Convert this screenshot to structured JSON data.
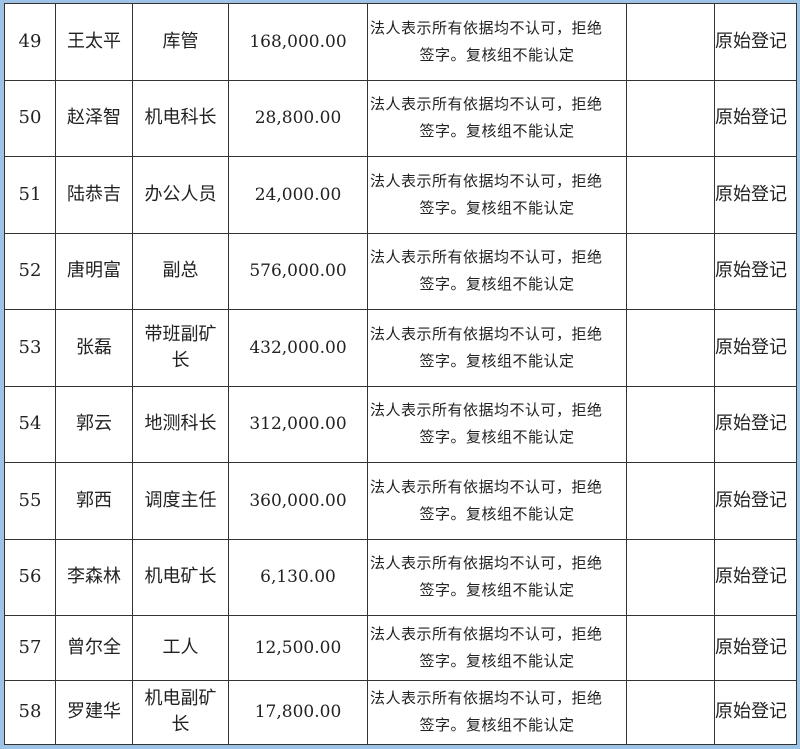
{
  "rows": [
    {
      "no": "49",
      "name": "王太平",
      "title": "库管",
      "amount": "168,000.00",
      "remark_line1": "法人表示所有依据均不认可，拒绝",
      "remark_line2": "签字。复核组不能认定",
      "extra": "",
      "status": "原始登记"
    },
    {
      "no": "50",
      "name": "赵泽智",
      "title": "机电科长",
      "amount": "28,800.00",
      "remark_line1": "法人表示所有依据均不认可，拒绝",
      "remark_line2": "签字。复核组不能认定",
      "extra": "",
      "status": "原始登记"
    },
    {
      "no": "51",
      "name": "陆恭吉",
      "title": "办公人员",
      "amount": "24,000.00",
      "remark_line1": "法人表示所有依据均不认可，拒绝",
      "remark_line2": "签字。复核组不能认定",
      "extra": "",
      "status": "原始登记"
    },
    {
      "no": "52",
      "name": "唐明富",
      "title": "副总",
      "amount": "576,000.00",
      "remark_line1": "法人表示所有依据均不认可，拒绝",
      "remark_line2": "签字。复核组不能认定",
      "extra": "",
      "status": "原始登记"
    },
    {
      "no": "53",
      "name": "张磊",
      "title": "带班副矿长",
      "amount": "432,000.00",
      "remark_line1": "法人表示所有依据均不认可，拒绝",
      "remark_line2": "签字。复核组不能认定",
      "extra": "",
      "status": "原始登记"
    },
    {
      "no": "54",
      "name": "郭云",
      "title": "地测科长",
      "amount": "312,000.00",
      "remark_line1": "法人表示所有依据均不认可，拒绝",
      "remark_line2": "签字。复核组不能认定",
      "extra": "",
      "status": "原始登记"
    },
    {
      "no": "55",
      "name": "郭西",
      "title": "调度主任",
      "amount": "360,000.00",
      "remark_line1": "法人表示所有依据均不认可，拒绝",
      "remark_line2": "签字。复核组不能认定",
      "extra": "",
      "status": "原始登记"
    },
    {
      "no": "56",
      "name": "李森林",
      "title": "机电矿长",
      "amount": "6,130.00",
      "remark_line1": "法人表示所有依据均不认可，拒绝",
      "remark_line2": "签字。复核组不能认定",
      "extra": "",
      "status": "原始登记"
    },
    {
      "no": "57",
      "name": "曾尔全",
      "title": "工人",
      "amount": "12,500.00",
      "remark_line1": "法人表示所有依据均不认可，拒绝",
      "remark_line2": "签字。复核组不能认定",
      "extra": "",
      "status": "原始登记"
    },
    {
      "no": "58",
      "name": "罗建华",
      "title": "机电副矿长",
      "amount": "17,800.00",
      "remark_line1": "法人表示所有依据均不认可，拒绝",
      "remark_line2": "签字。复核组不能认定",
      "extra": "",
      "status": "原始登记"
    }
  ],
  "colors": {
    "frame": "#9dc3e6",
    "grid": "#333333",
    "text": "#222222"
  }
}
